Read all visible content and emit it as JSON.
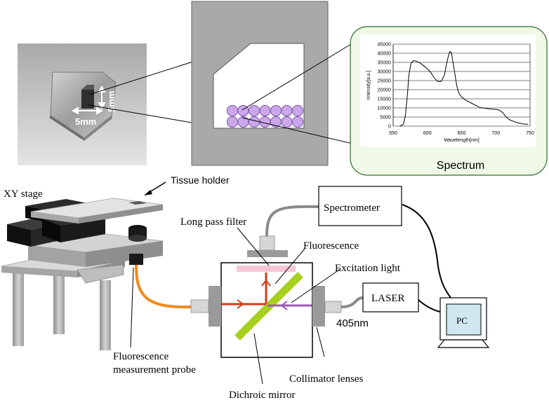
{
  "photo": {
    "dim_horizontal": "5mm",
    "dim_vertical": "5mm"
  },
  "spectrum_panel": {
    "title": "Spectrum",
    "chart_data": {
      "type": "line",
      "title": "",
      "xlabel": "Wavelength[nm]",
      "ylabel": "Intensity[a.u.]",
      "xlim": [
        550,
        750
      ],
      "ylim": [
        0,
        45000
      ],
      "x_ticks": [
        550,
        600,
        650,
        700,
        750
      ],
      "y_ticks": [
        0,
        5000,
        10000,
        15000,
        20000,
        25000,
        30000,
        35000,
        40000,
        45000
      ],
      "grid": "horizontal",
      "series": [
        {
          "x": [
            560,
            565,
            568,
            571,
            573,
            576,
            580,
            585,
            590,
            595,
            600,
            605,
            610,
            615,
            620,
            625,
            628,
            631,
            633,
            635,
            637,
            640,
            643,
            646,
            650,
            655,
            660,
            665,
            670,
            675,
            680,
            685,
            690,
            695,
            700,
            705,
            710,
            715,
            720,
            730,
            740,
            747
          ],
          "y": [
            0,
            1000,
            6000,
            18000,
            28000,
            34500,
            36000,
            35500,
            34500,
            33000,
            31500,
            29500,
            26500,
            24500,
            24500,
            28000,
            34000,
            39000,
            41000,
            40500,
            36000,
            29000,
            22000,
            18000,
            16000,
            14500,
            13500,
            12500,
            11500,
            10500,
            10000,
            9800,
            9500,
            9300,
            9200,
            8800,
            7500,
            5000,
            3500,
            2000,
            1200,
            1000
          ]
        }
      ]
    }
  },
  "labels": {
    "xy_stage": "XY stage",
    "tissue_holder": "Tissue holder",
    "spectrometer": "Spectrometer",
    "long_pass_filter": "Long pass filter",
    "fluorescence": "Fluorescence",
    "excitation_light": "Excitation light",
    "laser": "LASER",
    "wavelength": "405nm",
    "pc": "PC",
    "probe_line1": "Fluorescence",
    "probe_line2": "measurement probe",
    "collimator": "Collimator lenses",
    "dichroic": "Dichroic mirror"
  },
  "colors": {
    "fluorescence_ray": "#d83a17",
    "excitation_ray": "#9b59b6",
    "dichroic_mirror": "#a6d01e",
    "long_pass_filter": "#f4c6d8",
    "fiber": "#f08a1e",
    "cell": "#c9a7ea",
    "panel_bg": "#f0f8e6",
    "panel_border": "#2f6b2f"
  }
}
